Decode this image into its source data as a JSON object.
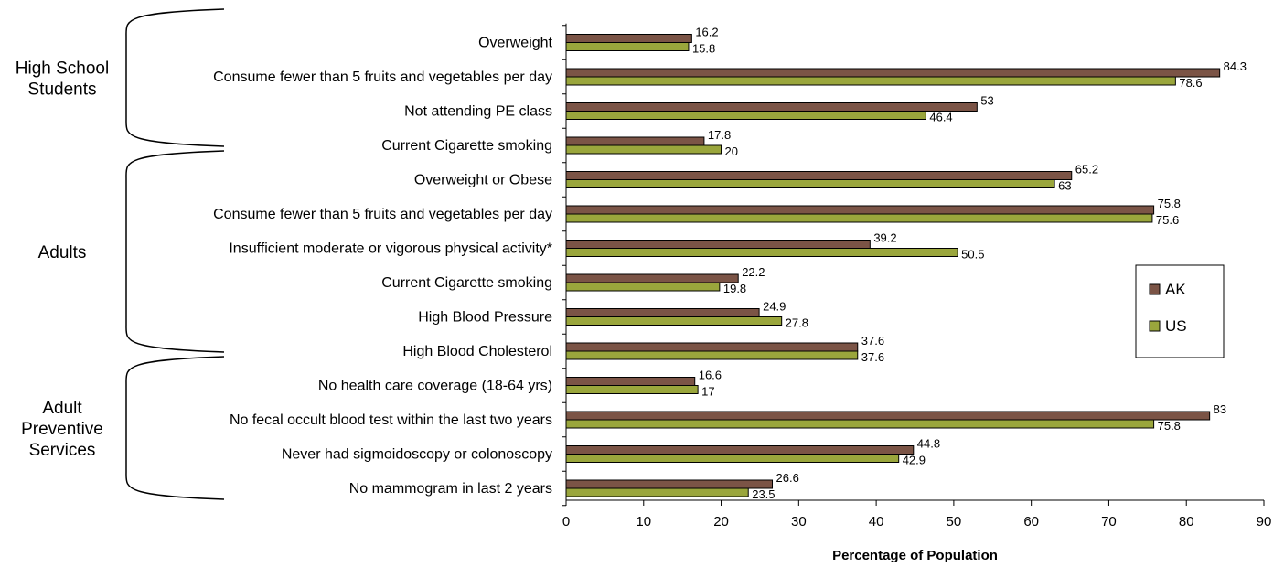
{
  "chart_data": {
    "type": "bar",
    "orientation": "horizontal",
    "xlabel": "Percentage of Population",
    "xlim": [
      0,
      90
    ],
    "xticks": [
      0,
      10,
      20,
      30,
      40,
      50,
      60,
      70,
      80,
      90
    ],
    "grid": false,
    "legend_position": "right",
    "categories": [
      "Overweight",
      "Consume fewer than 5 fruits and vegetables per day",
      "Not attending PE class",
      "Current Cigarette smoking",
      "Overweight or Obese",
      "Consume fewer than 5 fruits and vegetables per day",
      "Insufficient moderate or vigorous physical activity*",
      "Current Cigarette smoking",
      "High Blood Pressure",
      "High Blood Cholesterol",
      "No health care coverage (18-64 yrs)",
      "No fecal occult blood test within the last two years",
      "Never had sigmoidoscopy or colonoscopy",
      "No mammogram in last 2 years"
    ],
    "series": [
      {
        "name": "AK",
        "color": "#7b5446",
        "values": [
          16.2,
          84.3,
          53,
          17.8,
          65.2,
          75.8,
          39.2,
          22.2,
          24.9,
          37.6,
          16.6,
          83,
          44.8,
          26.6
        ]
      },
      {
        "name": "US",
        "color": "#9aa63c",
        "values": [
          15.8,
          78.6,
          46.4,
          20,
          63,
          75.6,
          50.5,
          19.8,
          27.8,
          37.6,
          17,
          75.8,
          42.9,
          23.5
        ]
      }
    ],
    "groups": [
      {
        "label": [
          "High School",
          "Students"
        ],
        "categories": [
          0,
          1,
          2,
          3
        ]
      },
      {
        "label": [
          "Adults"
        ],
        "categories": [
          4,
          5,
          6,
          7,
          8,
          9
        ]
      },
      {
        "label": [
          "Adult",
          "Preventive",
          "Services"
        ],
        "categories": [
          10,
          11,
          12,
          13
        ]
      }
    ]
  }
}
